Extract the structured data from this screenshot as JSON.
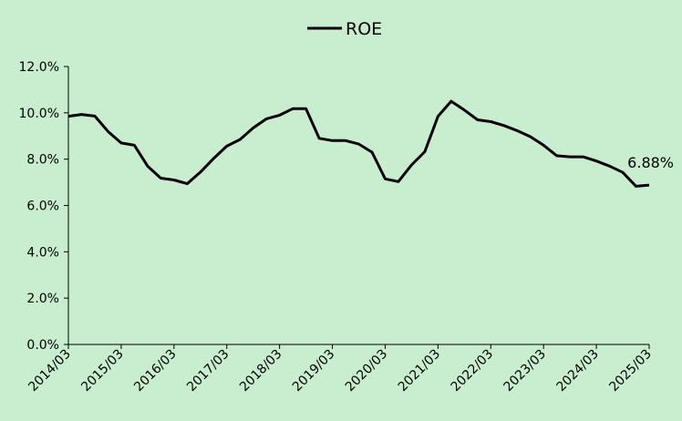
{
  "chart_data": {
    "type": "line",
    "legend": {
      "position": "top-center",
      "label": "ROE"
    },
    "series": [
      {
        "name": "ROE",
        "color": "#000000",
        "x": [
          "2014/03",
          "2014/06",
          "2014/09",
          "2014/12",
          "2015/03",
          "2015/06",
          "2015/09",
          "2015/12",
          "2016/03",
          "2016/06",
          "2016/09",
          "2016/12",
          "2017/03",
          "2017/06",
          "2017/09",
          "2017/12",
          "2018/03",
          "2018/06",
          "2018/09",
          "2018/12",
          "2019/03",
          "2019/06",
          "2019/09",
          "2019/12",
          "2020/03",
          "2020/06",
          "2020/09",
          "2020/12",
          "2021/03",
          "2021/06",
          "2021/09",
          "2021/12",
          "2022/03",
          "2022/06",
          "2022/09",
          "2022/12",
          "2023/03",
          "2023/06",
          "2023/09",
          "2023/12",
          "2024/03",
          "2024/06",
          "2024/09",
          "2024/12",
          "2025/03"
        ],
        "values": [
          9.85,
          9.93,
          9.86,
          9.2,
          8.7,
          8.6,
          7.7,
          7.18,
          7.1,
          6.94,
          7.44,
          8.03,
          8.56,
          8.85,
          9.35,
          9.74,
          9.9,
          10.18,
          10.18,
          8.9,
          8.8,
          8.8,
          8.65,
          8.3,
          7.15,
          7.03,
          7.75,
          8.32,
          9.85,
          10.5,
          10.12,
          9.7,
          9.62,
          9.45,
          9.23,
          8.97,
          8.6,
          8.15,
          8.1,
          8.1,
          7.92,
          7.7,
          7.43,
          6.83,
          6.88
        ]
      }
    ],
    "x_tick_labels": [
      "2014/03",
      "2015/03",
      "2016/03",
      "2017/03",
      "2018/03",
      "2019/03",
      "2020/03",
      "2021/03",
      "2022/03",
      "2023/03",
      "2024/03",
      "2025/03"
    ],
    "y_tick_labels": [
      "0.0%",
      "2.0%",
      "4.0%",
      "6.0%",
      "8.0%",
      "10.0%",
      "12.0%"
    ],
    "ylim": [
      0,
      12
    ],
    "y_tick_step": 2,
    "grid": false,
    "annotations": [
      {
        "text": "6.88%",
        "x": "2025/03",
        "y": 6.88
      }
    ],
    "title": "",
    "xlabel": "",
    "ylabel": ""
  }
}
